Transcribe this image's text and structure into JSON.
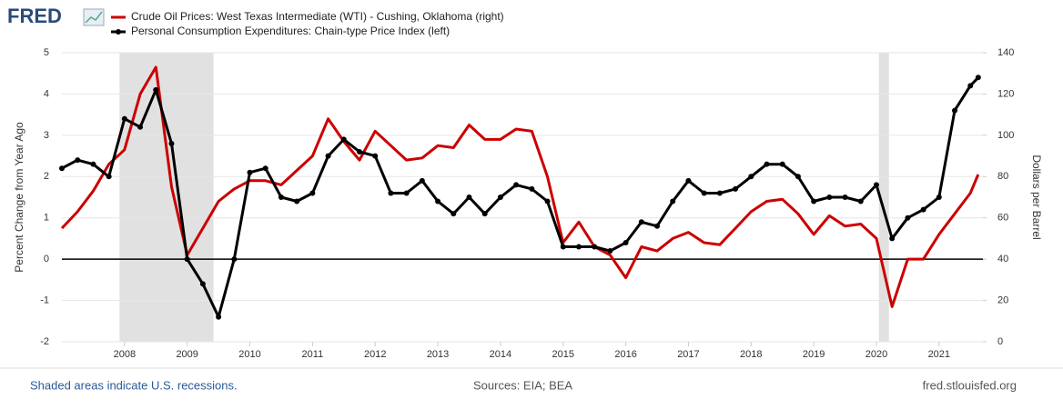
{
  "brand": "FRED",
  "chart_data": {
    "type": "line",
    "series": [
      {
        "name": "Crude Oil Prices: West Texas Intermediate (WTI) - Cushing, Oklahoma (right)",
        "color": "#cc0000",
        "axis": "y2",
        "markers": false,
        "values": [
          55,
          63,
          73,
          86,
          93,
          120,
          133,
          75,
          42,
          55,
          68,
          74,
          78,
          78,
          76,
          83,
          90,
          108,
          97,
          88,
          102,
          95,
          88,
          89,
          95,
          94,
          105,
          98,
          98,
          103,
          102,
          80,
          48,
          58,
          46,
          42,
          31,
          46,
          44,
          50,
          53,
          48,
          47,
          55,
          63,
          68,
          69,
          62,
          52,
          61,
          56,
          57,
          50,
          17,
          40,
          40,
          52,
          62,
          72,
          81
        ]
      },
      {
        "name": "Personal Consumption Expenditures: Chain-type Price Index (left)",
        "color": "#000000",
        "markers": true,
        "values": [
          2.2,
          2.4,
          2.3,
          2.0,
          3.4,
          3.2,
          4.1,
          2.8,
          0.0,
          -0.6,
          -1.4,
          0.0,
          2.1,
          2.2,
          1.5,
          1.4,
          1.6,
          2.5,
          2.9,
          2.6,
          2.5,
          1.6,
          1.6,
          1.9,
          1.4,
          1.1,
          1.5,
          1.1,
          1.5,
          1.8,
          1.7,
          1.4,
          0.3,
          0.3,
          0.3,
          0.2,
          0.4,
          0.9,
          0.8,
          1.4,
          1.9,
          1.6,
          1.6,
          1.7,
          2.0,
          2.3,
          2.3,
          2.0,
          1.4,
          1.5,
          1.5,
          1.4,
          1.8,
          0.5,
          1.0,
          1.2,
          1.5,
          3.6,
          4.2,
          4.4
        ]
      }
    ],
    "x": [
      2007,
      2007.25,
      2007.5,
      2007.75,
      2008,
      2008.25,
      2008.5,
      2008.75,
      2009,
      2009.25,
      2009.5,
      2009.75,
      2010,
      2010.25,
      2010.5,
      2010.75,
      2011,
      2011.25,
      2011.5,
      2011.75,
      2012,
      2012.25,
      2012.5,
      2012.75,
      2013,
      2013.25,
      2013.5,
      2013.75,
      2014,
      2014.25,
      2014.5,
      2014.75,
      2015,
      2015.25,
      2015.5,
      2015.75,
      2016,
      2016.25,
      2016.5,
      2016.75,
      2017,
      2017.25,
      2017.5,
      2017.75,
      2018,
      2018.25,
      2018.5,
      2018.75,
      2019,
      2019.25,
      2019.5,
      2019.75,
      2020,
      2020.25,
      2020.5,
      2020.75,
      2021,
      2021.25,
      2021.5,
      2021.625
    ],
    "xlim": [
      2007,
      2021.7
    ],
    "xticks": [
      2008,
      2009,
      2010,
      2011,
      2012,
      2013,
      2014,
      2015,
      2016,
      2017,
      2018,
      2019,
      2020,
      2021
    ],
    "ylim": [
      -2,
      5
    ],
    "yticks": [
      -2,
      -1,
      0,
      1,
      2,
      3,
      4,
      5
    ],
    "y2lim": [
      0,
      140
    ],
    "y2ticks": [
      0,
      20,
      40,
      60,
      80,
      100,
      120,
      140
    ],
    "ylabel": "Percent Change from Year Ago",
    "y2label": "Dollars per Barrel",
    "recessions": [
      [
        2007.92,
        2009.42
      ],
      [
        2020.04,
        2020.2
      ]
    ],
    "grid": true
  },
  "footer": {
    "note": "Shaded areas indicate U.S. recessions.",
    "sources": "Sources: EIA; BEA",
    "site": "fred.stlouisfed.org"
  }
}
